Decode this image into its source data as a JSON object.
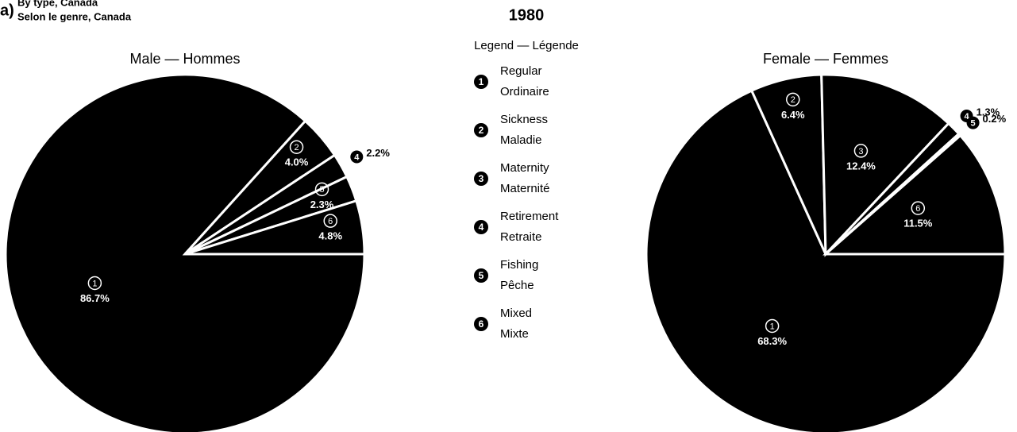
{
  "header": {
    "label": "a)",
    "line1": "By type, Canada",
    "line2": "Selon le genre, Canada",
    "title": "1980"
  },
  "legend": {
    "title": "Legend — Légende",
    "items": [
      {
        "marker": "1",
        "en": "Regular",
        "fr": "Ordinaire"
      },
      {
        "marker": "2",
        "en": "Sickness",
        "fr": "Maladie"
      },
      {
        "marker": "3",
        "en": "Maternity",
        "fr": "Maternité"
      },
      {
        "marker": "4",
        "en": "Retirement",
        "fr": "Retraite"
      },
      {
        "marker": "5",
        "en": "Fishing",
        "fr": "Pêche"
      },
      {
        "marker": "6",
        "en": "Mixed",
        "fr": "Mixte"
      }
    ]
  },
  "chart_data": [
    {
      "type": "pie",
      "title": "Male — Hommes",
      "color": "#000000",
      "categories": [
        "1",
        "2",
        "4",
        "5",
        "6"
      ],
      "values": [
        86.7,
        4.0,
        2.2,
        2.3,
        4.8
      ],
      "value_labels": [
        "86.7%",
        "4.0%",
        "2.2%",
        "2.3%",
        "4.8%"
      ]
    },
    {
      "type": "pie",
      "title": "Female — Femmes",
      "color": "#000000",
      "categories": [
        "1",
        "2",
        "3",
        "4",
        "5",
        "6"
      ],
      "values": [
        68.3,
        6.4,
        12.4,
        1.3,
        0.2,
        11.5
      ],
      "value_labels": [
        "68.3%",
        "6.4%",
        "12.4%",
        "1.3%",
        "0.2%",
        "11.5%"
      ]
    }
  ]
}
